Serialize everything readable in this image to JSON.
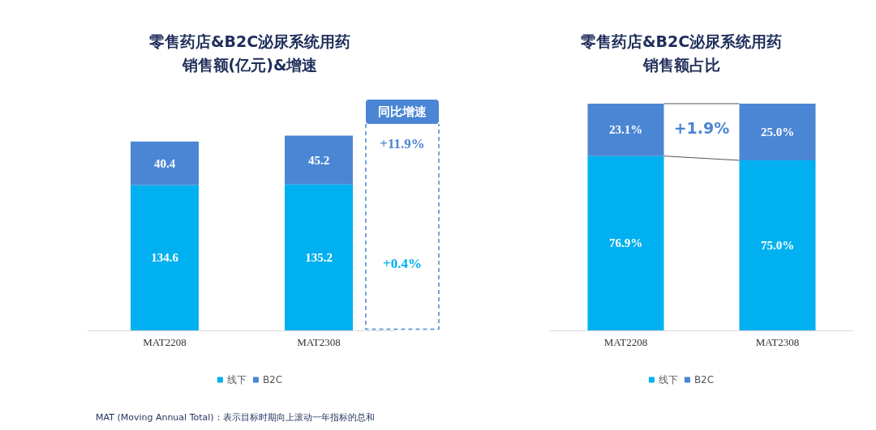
{
  "chart_data": [
    {
      "type": "bar",
      "title": "零售药店&B2C泌尿系统用药",
      "subtitle": "销售额(亿元)&增速",
      "categories": [
        "MAT2208",
        "MAT2308"
      ],
      "stacked": true,
      "data_labels": true,
      "legend": "bottom",
      "series": [
        {
          "name": "线下",
          "color": "#00b0f0",
          "values": [
            134.6,
            135.2
          ]
        },
        {
          "name": "B2C",
          "color": "#4a86d4",
          "values": [
            40.4,
            45.2
          ]
        }
      ],
      "annotations": [
        "同比增速",
        "+11.9%",
        "+0.4%",
        "MAT (Moving Annual Total)：表示目标时期向上滚动一年指标的总和"
      ]
    },
    {
      "type": "bar",
      "title": "零售药店&B2C泌尿系统用药",
      "subtitle": "销售额占比",
      "categories": [
        "MAT2208",
        "MAT2308"
      ],
      "stacked": true,
      "legend": "bottom",
      "series": [
        {
          "name": "线下",
          "color": "#00b0f0",
          "values": [
            76.9,
            75.0
          ],
          "value_labels": [
            "76.9%",
            "75.0%"
          ]
        },
        {
          "name": "B2C",
          "color": "#4a86d4",
          "values": [
            23.1,
            25.0
          ],
          "value_labels": [
            "23.1%",
            "25.0%"
          ]
        }
      ],
      "annotations": [
        "+1.9%"
      ]
    }
  ]
}
